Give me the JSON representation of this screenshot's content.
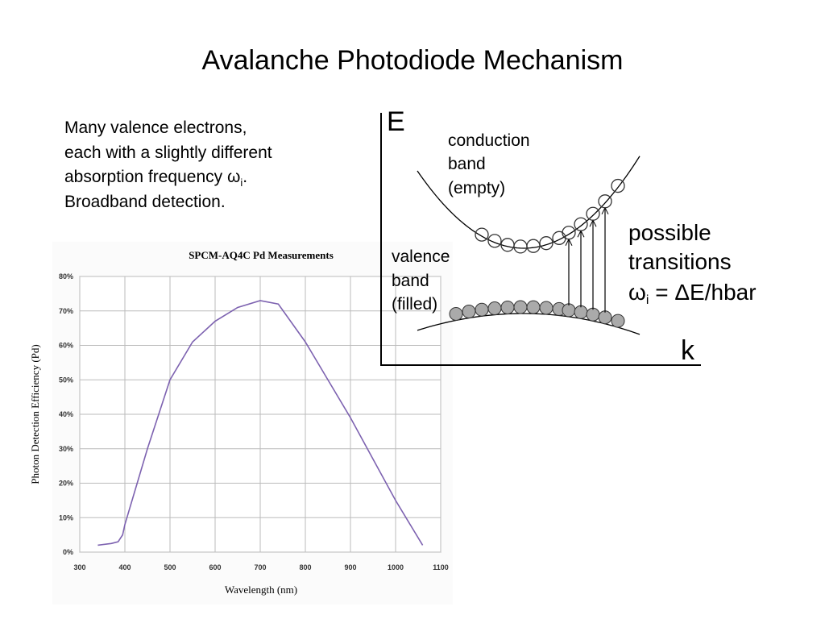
{
  "title": "Avalanche Photodiode Mechanism",
  "body": [
    {
      "text": "Many valence electrons,"
    },
    {
      "text": "each with a slightly different"
    },
    {
      "text": "absorption frequency ω",
      "sub": "i",
      "after": "."
    },
    {
      "text": "Broadband detection."
    }
  ],
  "chart_data": {
    "type": "line",
    "title": "SPCM-AQ4C Pd Measurements",
    "x_label": "Wavelength (nm)",
    "y_label": "Photon Detection Efficiency (Pd)",
    "x": [
      340,
      370,
      385,
      395,
      400,
      450,
      500,
      550,
      600,
      650,
      700,
      740,
      800,
      850,
      900,
      950,
      1000,
      1060
    ],
    "series": [
      {
        "name": "Pd",
        "color": "#7d62b0",
        "values": [
          2,
          2.5,
          3,
          5,
          8,
          30,
          50,
          61,
          67,
          71,
          73,
          72,
          61,
          50,
          39,
          27,
          15,
          2
        ]
      }
    ],
    "xlim": [
      300,
      1100
    ],
    "xticks": [
      300,
      400,
      500,
      600,
      700,
      800,
      900,
      1000,
      1100
    ],
    "ylim": [
      0,
      80
    ],
    "yticks": [
      {
        "value": 0,
        "label": "0%"
      },
      {
        "value": 10,
        "label": "10%"
      },
      {
        "value": 20,
        "label": "20%"
      },
      {
        "value": 30,
        "label": "30%"
      },
      {
        "value": 40,
        "label": "40%"
      },
      {
        "value": 50,
        "label": "50%"
      },
      {
        "value": 60,
        "label": "60%"
      },
      {
        "value": 70,
        "label": "70%"
      },
      {
        "value": 80,
        "label": "80%"
      }
    ],
    "grid": true
  },
  "diagram": {
    "y_axis": "E",
    "x_axis": "k",
    "conduction": [
      "conduction",
      "band",
      "(empty)"
    ],
    "valence": [
      "valence",
      "band",
      "(filled)"
    ],
    "transitions": [
      "possible",
      "transitions"
    ],
    "formula": {
      "symbol": "ω",
      "sub": "i",
      "rest": " = ΔE/hbar"
    }
  }
}
